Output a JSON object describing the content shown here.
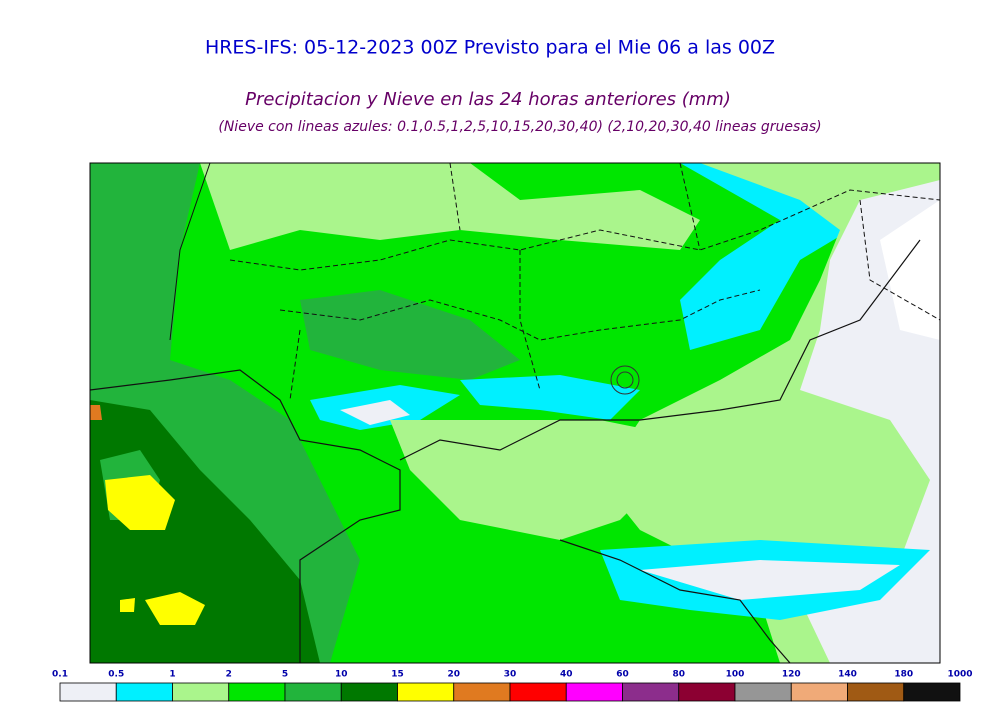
{
  "header": {
    "title": "HRES-IFS: 05-12-2023 00Z Previsto para el Mie 06 a las 00Z",
    "subtitle": "Precipitacion y Nieve en las 24 horas anteriores (mm)",
    "note": "(Nieve con lineas azules: 0.1,0.5,1,2,5,10,15,20,30,40)  (2,10,20,30,40 lineas gruesas)"
  },
  "colorbar": {
    "labels": [
      "0.1",
      "0.5",
      "1",
      "2",
      "5",
      "10",
      "15",
      "20",
      "30",
      "40",
      "60",
      "80",
      "100",
      "120",
      "140",
      "180",
      "1000"
    ],
    "colors": [
      "#eef0f6",
      "#00f0ff",
      "#aaf58c",
      "#00e600",
      "#22b43c",
      "#007800",
      "#ffff00",
      "#e07a20",
      "#ff0000",
      "#ff00ff",
      "#8c2d8c",
      "#8c0032",
      "#969696",
      "#f0aa78",
      "#a05a14",
      "#111111"
    ]
  }
}
